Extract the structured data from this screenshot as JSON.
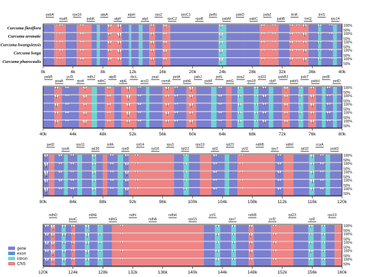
{
  "chart_data": {
    "type": "area",
    "species": [
      "Curcuma flaviflora",
      "Curcuma aromatic",
      "Curcuma kwangsiensis",
      "Curcuma longa",
      "Curcuma phaeocaulis"
    ],
    "percent_labels": [
      "100%",
      "50%"
    ],
    "legend": [
      {
        "label": "gene",
        "color": "#7b7fd0"
      },
      {
        "label": "exon",
        "color": "#5f8fd8"
      },
      {
        "label": "intron",
        "color": "#6fd3d3"
      },
      {
        "label": "CNS",
        "color": "#f08484"
      }
    ],
    "panels": [
      {
        "x_start": 0,
        "x_end": 40000,
        "ticks": [
          "0k",
          "4k",
          "8k",
          "12k",
          "16k",
          "20k",
          "24k",
          "28k",
          "32k",
          "36k",
          "40k"
        ],
        "genes": [
          "psbA",
          "matK",
          "rps16",
          "psbK",
          "atpA",
          "atpF",
          "atpH",
          "atpI",
          "rps2",
          "rpoC2",
          "rpoC1",
          "rpoB",
          "petN",
          "psbM",
          "psbD",
          "psbC",
          "psbZ",
          "psbB",
          "trnK",
          "trnQ",
          "trnS",
          "rps14"
        ],
        "segments": [
          [
            0,
            1500,
            "g"
          ],
          [
            1500,
            1800,
            "c"
          ],
          [
            1800,
            3000,
            "c"
          ],
          [
            3000,
            4500,
            "g"
          ],
          [
            4500,
            6500,
            "c"
          ],
          [
            6500,
            7200,
            "g"
          ],
          [
            7200,
            7600,
            "i"
          ],
          [
            7600,
            8600,
            "g"
          ],
          [
            8600,
            10500,
            "c"
          ],
          [
            10500,
            11500,
            "g"
          ],
          [
            11500,
            11800,
            "i"
          ],
          [
            11800,
            12800,
            "g"
          ],
          [
            12800,
            13300,
            "i"
          ],
          [
            13300,
            14200,
            "g"
          ],
          [
            14200,
            15000,
            "c"
          ],
          [
            15000,
            16000,
            "g"
          ],
          [
            16000,
            17000,
            "c"
          ],
          [
            17000,
            23500,
            "g"
          ],
          [
            23500,
            24500,
            "i"
          ],
          [
            24500,
            27000,
            "g"
          ],
          [
            27000,
            29000,
            "g"
          ],
          [
            29000,
            31500,
            "c"
          ],
          [
            31500,
            33000,
            "g"
          ],
          [
            33000,
            35500,
            "c"
          ],
          [
            35500,
            36800,
            "g"
          ],
          [
            36800,
            37200,
            "i"
          ],
          [
            37200,
            38800,
            "g"
          ],
          [
            38800,
            39300,
            "i"
          ],
          [
            39300,
            40000,
            "g"
          ]
        ],
        "dips": [
          [
            1600,
            0.1
          ],
          [
            2400,
            0.25
          ],
          [
            5200,
            0.3
          ],
          [
            8900,
            0.5
          ],
          [
            10200,
            0.6
          ],
          [
            14600,
            0.4
          ],
          [
            16300,
            0.5
          ],
          [
            23800,
            0.7
          ],
          [
            29400,
            0.3
          ],
          [
            30900,
            0.2
          ],
          [
            33200,
            0.4
          ],
          [
            34100,
            0.2
          ],
          [
            35000,
            0.5
          ],
          [
            37000,
            0.3
          ],
          [
            38500,
            0.2
          ]
        ]
      },
      {
        "x_start": 40000,
        "x_end": 80000,
        "ticks": [
          "40k",
          "44k",
          "48k",
          "52k",
          "56k",
          "60k",
          "64k",
          "68k",
          "72k",
          "76k",
          "80k"
        ],
        "genes": [
          "psbB",
          "psaA",
          "ycf3",
          "rps4",
          "ndhJ",
          "ndhC",
          "atpB",
          "atpE",
          "rbcL",
          "accD",
          "psaI",
          "cemA",
          "petA",
          "psbE",
          "psbJ",
          "psbF",
          "petL",
          "petG",
          "psaJ",
          "rps18",
          "rpl33",
          "clpP",
          "psbB2",
          "psbN",
          "psbT",
          "psbH",
          "petB",
          "petD"
        ],
        "segments": [
          [
            40000,
            41500,
            "g"
          ],
          [
            41500,
            42500,
            "c"
          ],
          [
            42500,
            44800,
            "g"
          ],
          [
            44800,
            46500,
            "c"
          ],
          [
            46500,
            47200,
            "i"
          ],
          [
            47200,
            48300,
            "g"
          ],
          [
            48300,
            49500,
            "c"
          ],
          [
            49500,
            50500,
            "g"
          ],
          [
            50500,
            52500,
            "c"
          ],
          [
            52500,
            53800,
            "g"
          ],
          [
            53800,
            54200,
            "i"
          ],
          [
            54200,
            56000,
            "g"
          ],
          [
            56000,
            57500,
            "c"
          ],
          [
            57500,
            59200,
            "g"
          ],
          [
            59200,
            60500,
            "c"
          ],
          [
            60500,
            62500,
            "g"
          ],
          [
            62500,
            63200,
            "i"
          ],
          [
            63200,
            64500,
            "g"
          ],
          [
            64500,
            65200,
            "c"
          ],
          [
            65200,
            66000,
            "g"
          ],
          [
            66000,
            66800,
            "i"
          ],
          [
            66800,
            68200,
            "g"
          ],
          [
            68200,
            68800,
            "i"
          ],
          [
            68800,
            70200,
            "g"
          ],
          [
            70200,
            70800,
            "i"
          ],
          [
            70800,
            72000,
            "g"
          ],
          [
            72000,
            73000,
            "c"
          ],
          [
            73000,
            74200,
            "g"
          ],
          [
            74200,
            74800,
            "i"
          ],
          [
            74800,
            75500,
            "g"
          ],
          [
            75500,
            76500,
            "c"
          ],
          [
            76500,
            77300,
            "g"
          ],
          [
            77300,
            77800,
            "i"
          ],
          [
            77800,
            78800,
            "g"
          ],
          [
            78800,
            79300,
            "i"
          ],
          [
            79300,
            80000,
            "g"
          ]
        ],
        "dips": [
          [
            41800,
            0.5
          ],
          [
            43200,
            0.3
          ],
          [
            45600,
            0.6
          ],
          [
            48800,
            0.4
          ],
          [
            51400,
            0.7
          ],
          [
            52900,
            0.3
          ],
          [
            56600,
            0.5
          ],
          [
            57800,
            0.3
          ],
          [
            59800,
            0.6
          ],
          [
            63700,
            0.3
          ],
          [
            66300,
            0.4
          ],
          [
            68500,
            0.3
          ],
          [
            69600,
            0.4
          ],
          [
            72500,
            0.5
          ],
          [
            74400,
            0.3
          ],
          [
            76000,
            0.5
          ],
          [
            78200,
            0.3
          ]
        ]
      },
      {
        "x_start": 80000,
        "x_end": 120000,
        "ticks": [
          "80k",
          "84k",
          "88k",
          "92k",
          "96k",
          "100k",
          "104k",
          "108k",
          "112k",
          "116k",
          "120k"
        ],
        "genes": [
          "petD",
          "rpoA",
          "rps11",
          "rpl36",
          "infA",
          "rps8",
          "rpl14",
          "rpl16",
          "rps3",
          "rpl22",
          "rps19",
          "rpl2",
          "rpl23",
          "ycf2",
          "ndhB",
          "rps7",
          "ndhF",
          "rpl32",
          "ccsA",
          "psbD"
        ],
        "segments": [
          [
            80000,
            80800,
            "g"
          ],
          [
            80800,
            81500,
            "c"
          ],
          [
            81500,
            82800,
            "g"
          ],
          [
            82800,
            83300,
            "i"
          ],
          [
            83300,
            84600,
            "g"
          ],
          [
            84600,
            85200,
            "i"
          ],
          [
            85200,
            86500,
            "g"
          ],
          [
            86500,
            87100,
            "i"
          ],
          [
            87100,
            88000,
            "g"
          ],
          [
            88000,
            88600,
            "c"
          ],
          [
            88600,
            90000,
            "g"
          ],
          [
            90000,
            90700,
            "i"
          ],
          [
            90700,
            91500,
            "g"
          ],
          [
            91500,
            97500,
            "c"
          ],
          [
            97500,
            98800,
            "g"
          ],
          [
            98800,
            99500,
            "i"
          ],
          [
            99500,
            101000,
            "g"
          ],
          [
            101000,
            102500,
            "c"
          ],
          [
            102500,
            104300,
            "g"
          ],
          [
            104300,
            104900,
            "i"
          ],
          [
            104900,
            106000,
            "g"
          ],
          [
            106000,
            111000,
            "c"
          ],
          [
            111000,
            112200,
            "g"
          ],
          [
            112200,
            113500,
            "c"
          ],
          [
            113500,
            115600,
            "g"
          ],
          [
            115600,
            116300,
            "i"
          ],
          [
            116300,
            117800,
            "g"
          ],
          [
            117800,
            118400,
            "i"
          ],
          [
            118400,
            120000,
            "g"
          ]
        ],
        "dips": [
          [
            80400,
            0.8
          ],
          [
            82300,
            0.4
          ],
          [
            83900,
            0.3
          ],
          [
            86800,
            0.5
          ],
          [
            89200,
            0.3
          ],
          [
            91200,
            0.6
          ],
          [
            92500,
            0.2
          ],
          [
            99000,
            0.3
          ],
          [
            103000,
            0.4
          ],
          [
            106500,
            0.2
          ],
          [
            111600,
            0.4
          ],
          [
            116000,
            0.5
          ],
          [
            117300,
            0.3
          ]
        ]
      },
      {
        "x_start": 120000,
        "x_end": 160000,
        "ticks": [
          "120k",
          "124k",
          "128k",
          "132k",
          "136k",
          "140k",
          "144k",
          "148k",
          "152k",
          "156k",
          "160k"
        ],
        "genes": [
          "ndhD",
          "psaC",
          "ndhE",
          "ndhG",
          "ndhI",
          "ndhA",
          "ndhH",
          "rps15",
          "ycf1",
          "rps7",
          "ndhB",
          "ycf2",
          "rpl23",
          "rpl2",
          "rps19"
        ],
        "segments": [
          [
            120000,
            121000,
            "g"
          ],
          [
            121000,
            121600,
            "c"
          ],
          [
            121600,
            122500,
            "g"
          ],
          [
            122500,
            123000,
            "i"
          ],
          [
            123000,
            123800,
            "g"
          ],
          [
            123800,
            124300,
            "c"
          ],
          [
            124300,
            125600,
            "g"
          ],
          [
            125600,
            126200,
            "i"
          ],
          [
            126200,
            127300,
            "g"
          ],
          [
            127300,
            128000,
            "i"
          ],
          [
            128000,
            129200,
            "g"
          ],
          [
            129200,
            133500,
            "c"
          ],
          [
            133500,
            141500,
            "c"
          ],
          [
            141500,
            143000,
            "g"
          ],
          [
            143000,
            143700,
            "i"
          ],
          [
            143700,
            145200,
            "g"
          ],
          [
            145200,
            145800,
            "i"
          ],
          [
            145800,
            147500,
            "g"
          ],
          [
            147500,
            148200,
            "c"
          ],
          [
            148200,
            150500,
            "g"
          ],
          [
            150500,
            153500,
            "c"
          ],
          [
            153500,
            155500,
            "g"
          ],
          [
            155500,
            156200,
            "i"
          ],
          [
            156200,
            157200,
            "g"
          ],
          [
            157200,
            157800,
            "i"
          ],
          [
            157800,
            159000,
            "g"
          ],
          [
            159000,
            160000,
            "c"
          ]
        ],
        "dips": [
          [
            120500,
            0.6
          ],
          [
            121300,
            0.8
          ],
          [
            122800,
            0.5
          ],
          [
            124000,
            0.4
          ],
          [
            125900,
            0.6
          ],
          [
            127600,
            0.3
          ],
          [
            130500,
            0.2
          ],
          [
            143300,
            0.4
          ],
          [
            145500,
            0.3
          ],
          [
            147800,
            0.5
          ],
          [
            151000,
            0.3
          ],
          [
            155800,
            0.4
          ],
          [
            157500,
            0.3
          ]
        ]
      }
    ]
  }
}
